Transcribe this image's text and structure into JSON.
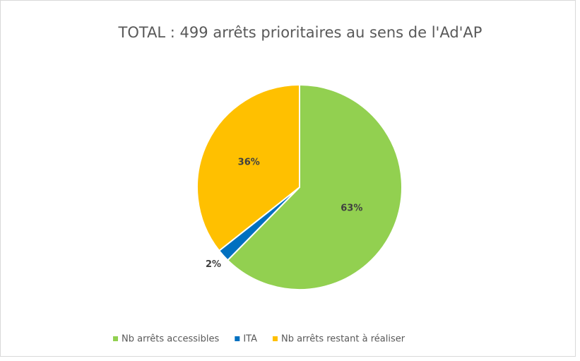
{
  "chart_data": {
    "type": "pie",
    "title": "TOTAL : 499 arrêts prioritaires au sens de l'Ad'AP",
    "categories": [
      "Nb arrêts accessibles",
      "ITA",
      "Nb arrêts restant à réaliser"
    ],
    "values": [
      63,
      2,
      36
    ],
    "value_labels": [
      "63%",
      "2%",
      "36%"
    ],
    "colors": [
      "#92d050",
      "#0070c0",
      "#ffc000"
    ],
    "legend": "bottom"
  }
}
